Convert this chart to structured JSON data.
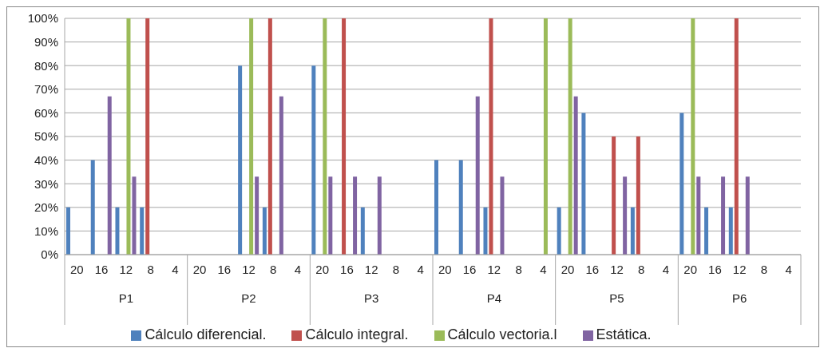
{
  "chart_data": {
    "type": "bar",
    "categories": [
      "20",
      "16",
      "12",
      "8",
      "4",
      "20",
      "16",
      "12",
      "8",
      "4",
      "20",
      "16",
      "12",
      "8",
      "4",
      "20",
      "16",
      "12",
      "8",
      "4",
      "20",
      "16",
      "12",
      "8",
      "4",
      "20",
      "16",
      "12",
      "8",
      "4"
    ],
    "annotations": [
      "P1",
      "P2",
      "P3",
      "P4",
      "P5",
      "P6"
    ],
    "series": [
      {
        "name": "Cálculo diferencial.",
        "color": "#4f81bd",
        "values": [
          20,
          40,
          20,
          20,
          null,
          null,
          null,
          80,
          20,
          null,
          80,
          null,
          20,
          null,
          null,
          40,
          40,
          20,
          null,
          null,
          20,
          60,
          null,
          20,
          null,
          60,
          20,
          20,
          null,
          null
        ]
      },
      {
        "name": "Cálculo integral.",
        "color": "#c0504d",
        "values": [
          null,
          null,
          null,
          100,
          null,
          null,
          null,
          null,
          100,
          null,
          null,
          100,
          null,
          null,
          null,
          null,
          null,
          100,
          null,
          null,
          null,
          null,
          50,
          50,
          null,
          null,
          null,
          100,
          null,
          null
        ]
      },
      {
        "name": "Cálculo vectoria.l",
        "color": "#9bbb59",
        "values": [
          null,
          null,
          100,
          null,
          null,
          null,
          null,
          100,
          null,
          null,
          100,
          null,
          null,
          null,
          null,
          null,
          null,
          null,
          null,
          100,
          100,
          null,
          null,
          null,
          null,
          100,
          null,
          null,
          null,
          null
        ]
      },
      {
        "name": "Estática.",
        "color": "#8064a2",
        "values": [
          null,
          67,
          33,
          null,
          null,
          null,
          null,
          33,
          67,
          null,
          33,
          33,
          33,
          null,
          null,
          null,
          67,
          33,
          null,
          null,
          67,
          null,
          33,
          null,
          null,
          33,
          33,
          33,
          null,
          null
        ]
      }
    ],
    "ylim": [
      0,
      100
    ],
    "yticks": [
      {
        "value": 0,
        "label": "0%"
      },
      {
        "value": 10,
        "label": "10%"
      },
      {
        "value": 20,
        "label": "20%"
      },
      {
        "value": 30,
        "label": "30%"
      },
      {
        "value": 40,
        "label": "40%"
      },
      {
        "value": 50,
        "label": "50%"
      },
      {
        "value": 60,
        "label": "60%"
      },
      {
        "value": 70,
        "label": "70%"
      },
      {
        "value": 80,
        "label": "80%"
      },
      {
        "value": 90,
        "label": "90%"
      },
      {
        "value": 100,
        "label": "100%"
      }
    ],
    "grid": "y",
    "legend": "bottom"
  }
}
